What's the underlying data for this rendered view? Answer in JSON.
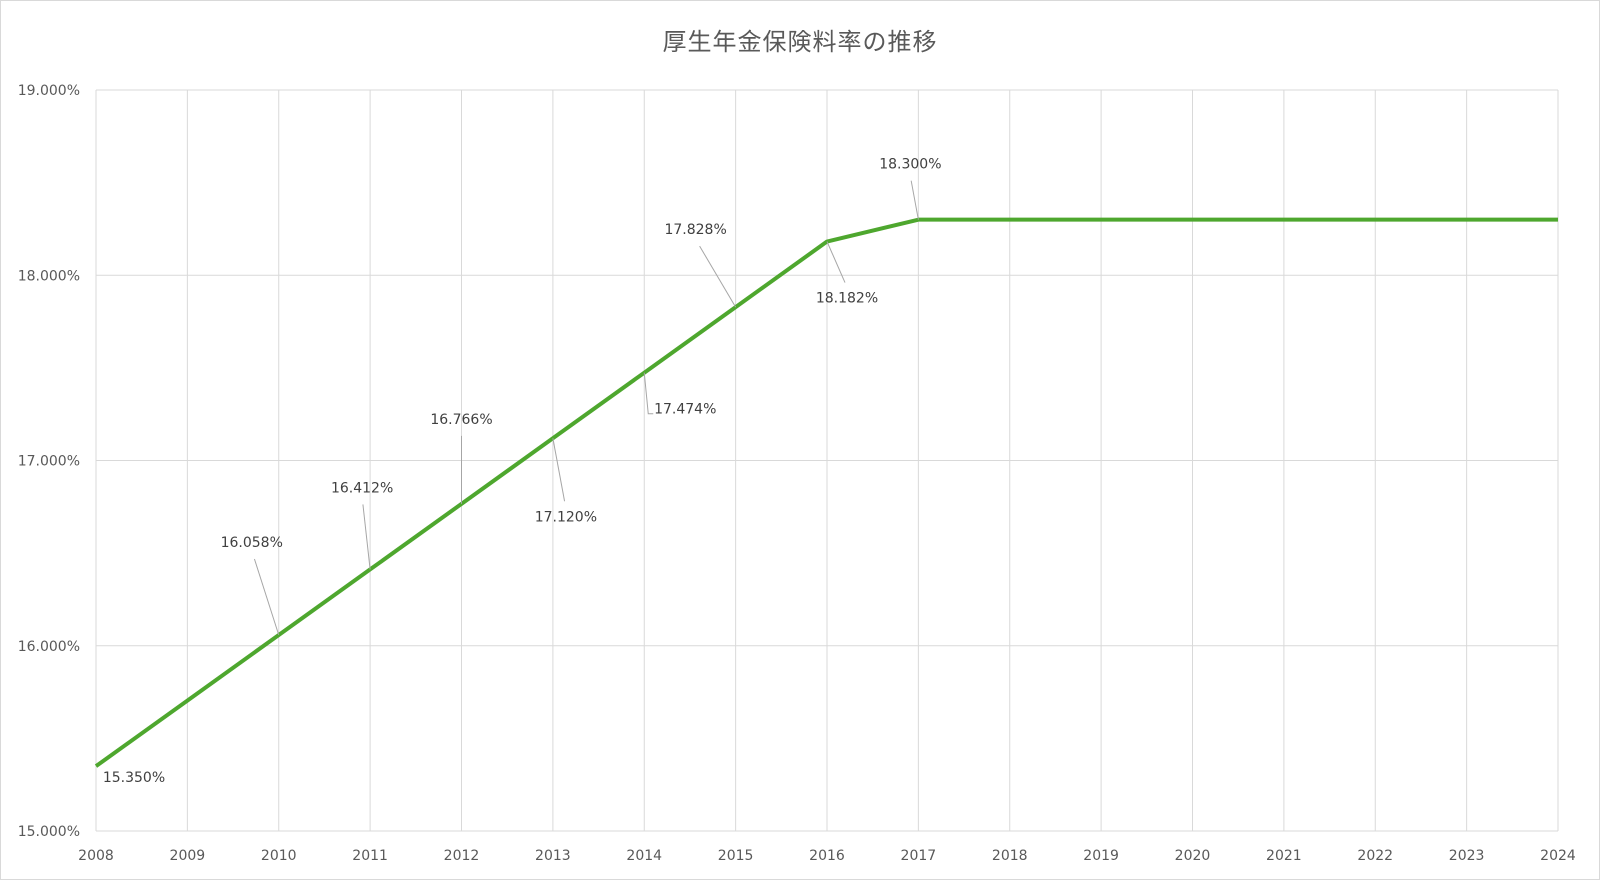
{
  "chart_data": {
    "type": "line",
    "title": "厚生年金保険料率の推移",
    "xlabel": "",
    "ylabel": "",
    "categories": [
      "2008",
      "2009",
      "2010",
      "2011",
      "2012",
      "2013",
      "2014",
      "2015",
      "2016",
      "2017",
      "2018",
      "2019",
      "2020",
      "2021",
      "2022",
      "2023",
      "2024"
    ],
    "series": [
      {
        "values": [
          15.35,
          15.704,
          16.058,
          16.412,
          16.766,
          17.12,
          17.474,
          17.828,
          18.182,
          18.3,
          18.3,
          18.3,
          18.3,
          18.3,
          18.3,
          18.3,
          18.3
        ]
      }
    ],
    "ylim": [
      15.0,
      19.0
    ],
    "yticks": [
      15.0,
      16.0,
      17.0,
      18.0,
      19.0
    ],
    "ytick_labels": [
      "15.000%",
      "16.000%",
      "17.000%",
      "18.000%",
      "19.000%"
    ],
    "data_labels": [
      {
        "index": 0,
        "text": "15.350%"
      },
      {
        "index": 2,
        "text": "16.058%"
      },
      {
        "index": 3,
        "text": "16.412%"
      },
      {
        "index": 4,
        "text": "16.766%"
      },
      {
        "index": 5,
        "text": "17.120%"
      },
      {
        "index": 6,
        "text": "17.474%"
      },
      {
        "index": 7,
        "text": "17.828%"
      },
      {
        "index": 8,
        "text": "18.182%"
      },
      {
        "index": 9,
        "text": "18.300%"
      }
    ],
    "grid": true,
    "legend": "none",
    "line_color": "#4ea72e"
  }
}
